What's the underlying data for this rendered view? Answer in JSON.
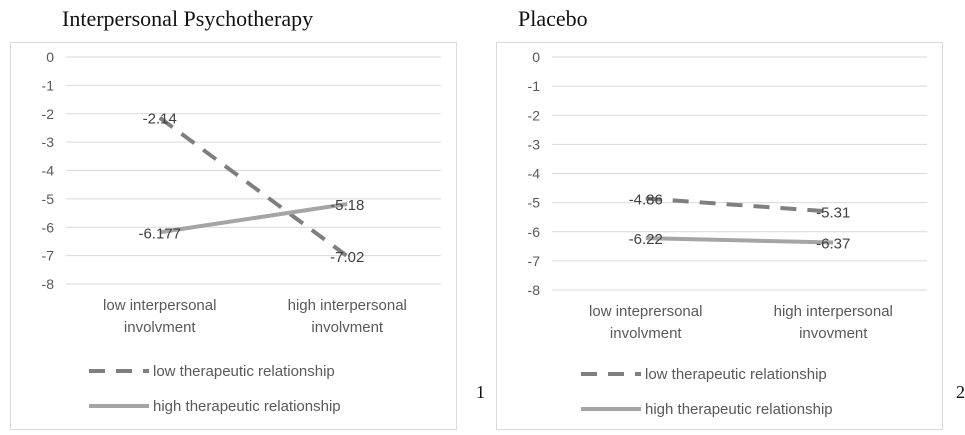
{
  "panel_numbers": [
    "1",
    "2"
  ],
  "chart_data": [
    {
      "type": "line",
      "title": "Interpersonal Psychotherapy",
      "categories": [
        [
          "low interpersonal",
          "involvment"
        ],
        [
          "high interpersonal",
          "involvment"
        ]
      ],
      "yticks": [
        0,
        -1,
        -2,
        -3,
        -4,
        -5,
        -6,
        -7,
        -8
      ],
      "ylim": [
        -8,
        0
      ],
      "grid": true,
      "legend_position": "bottom",
      "series": [
        {
          "name": "low therapeutic relationship",
          "values": [
            -2.14,
            -7.02
          ],
          "labels": [
            "-2.14",
            "-7.02"
          ],
          "style": "dashed",
          "color": "#7f7f7f"
        },
        {
          "name": "high therapeutic relationship",
          "values": [
            -6.177,
            -5.18
          ],
          "labels": [
            "-6.177",
            "-5.18"
          ],
          "style": "solid",
          "color": "#a5a5a5"
        }
      ]
    },
    {
      "type": "line",
      "title": "Placebo",
      "categories": [
        [
          "low inteprersonal",
          "involvment"
        ],
        [
          "high interpersonal",
          "invovment"
        ]
      ],
      "yticks": [
        0,
        -1,
        -2,
        -3,
        -4,
        -5,
        -6,
        -7,
        -8
      ],
      "ylim": [
        -8,
        0
      ],
      "grid": true,
      "legend_position": "bottom",
      "series": [
        {
          "name": "low therapeutic relationship",
          "values": [
            -4.86,
            -5.31
          ],
          "labels": [
            "-4.86",
            "-5.31"
          ],
          "style": "dashed",
          "color": "#7f7f7f"
        },
        {
          "name": "high therapeutic relationship",
          "values": [
            -6.22,
            -6.37
          ],
          "labels": [
            "-6.22",
            "-6.37"
          ],
          "style": "solid",
          "color": "#a5a5a5"
        }
      ]
    }
  ]
}
